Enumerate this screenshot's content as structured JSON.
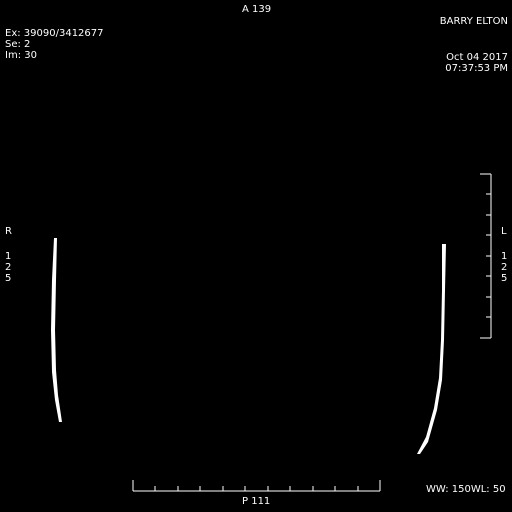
{
  "viewer": {
    "top_orientation": "A 139",
    "bottom_orientation": "P 111",
    "left_orientation": "R",
    "right_orientation": "L",
    "left_depth_digits": [
      "1",
      "2",
      "5"
    ],
    "right_depth_digits": [
      "1",
      "2",
      "5"
    ],
    "patient_name": "BARRY ELTON",
    "exam": "Ex: 39090/3412677",
    "series": "Se: 2",
    "image": "Im: 30",
    "date": "Oct 04 2017",
    "time": "07:37:53 PM",
    "window_width": "WW: 150",
    "window_level": "WL: 50"
  },
  "colors": {
    "background": "#000000",
    "overlay_text": "#ffffff"
  }
}
